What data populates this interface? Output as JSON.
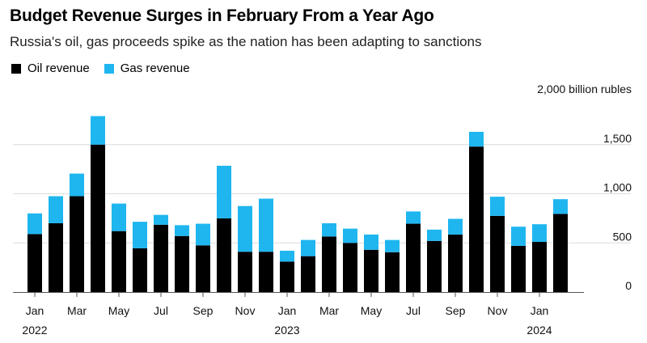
{
  "title": "Budget Revenue Surges in February From a Year Ago",
  "subtitle": "Russia's oil, gas proceeds spike as the nation has been adapting to sanctions",
  "legend": {
    "oil": "Oil revenue",
    "gas": "Gas revenue"
  },
  "colors": {
    "oil": "#000000",
    "gas": "#1fb6f0",
    "baseline": "#555555",
    "grid": "#dcdcdc"
  },
  "chart_data": {
    "type": "bar",
    "stacked": true,
    "unit_label": "2,000 billion rubles",
    "ylim": [
      0,
      2000
    ],
    "y_ticks": [
      0,
      500,
      1000,
      1500
    ],
    "y_tick_labels": [
      "0",
      "500",
      "1,000",
      "1,500"
    ],
    "y_axis_side": "right",
    "categories": [
      "Jan 2022",
      "Feb 2022",
      "Mar 2022",
      "Apr 2022",
      "May 2022",
      "Jun 2022",
      "Jul 2022",
      "Aug 2022",
      "Sep 2022",
      "Oct 2022",
      "Nov 2022",
      "Dec 2022",
      "Jan 2023",
      "Feb 2023",
      "Mar 2023",
      "Apr 2023",
      "May 2023",
      "Jun 2023",
      "Jul 2023",
      "Aug 2023",
      "Sep 2023",
      "Oct 2023",
      "Nov 2023",
      "Dec 2023",
      "Jan 2024",
      "Feb 2024"
    ],
    "series": [
      {
        "name": "Oil revenue",
        "values": [
          590,
          700,
          975,
          1500,
          620,
          445,
          685,
          570,
          475,
          750,
          410,
          410,
          310,
          365,
          565,
          500,
          430,
          405,
          695,
          520,
          585,
          1480,
          775,
          470,
          510,
          795
        ]
      },
      {
        "name": "Gas revenue",
        "values": [
          210,
          275,
          230,
          290,
          280,
          270,
          100,
          110,
          220,
          535,
          465,
          540,
          110,
          165,
          135,
          145,
          155,
          125,
          125,
          115,
          160,
          150,
          195,
          195,
          180,
          150
        ]
      }
    ],
    "x_tick_labels": [
      {
        "index": 0,
        "label": "Jan",
        "year": "2022"
      },
      {
        "index": 2,
        "label": "Mar",
        "year": ""
      },
      {
        "index": 4,
        "label": "May",
        "year": ""
      },
      {
        "index": 6,
        "label": "Jul",
        "year": ""
      },
      {
        "index": 8,
        "label": "Sep",
        "year": ""
      },
      {
        "index": 10,
        "label": "Nov",
        "year": ""
      },
      {
        "index": 12,
        "label": "Jan",
        "year": "2023"
      },
      {
        "index": 14,
        "label": "Mar",
        "year": ""
      },
      {
        "index": 16,
        "label": "May",
        "year": ""
      },
      {
        "index": 18,
        "label": "Jul",
        "year": ""
      },
      {
        "index": 20,
        "label": "Sep",
        "year": ""
      },
      {
        "index": 22,
        "label": "Nov",
        "year": ""
      },
      {
        "index": 24,
        "label": "Jan",
        "year": "2024"
      }
    ]
  }
}
